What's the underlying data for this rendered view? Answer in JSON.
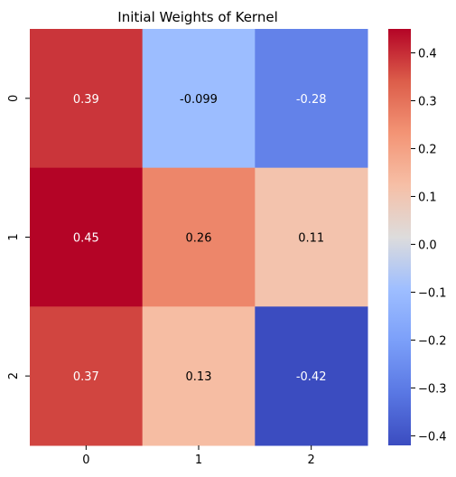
{
  "chart_data": {
    "type": "heatmap",
    "title": "Initial Weights of Kernel",
    "x_categories": [
      "0",
      "1",
      "2"
    ],
    "y_categories": [
      "0",
      "1",
      "2"
    ],
    "values": [
      [
        0.39,
        -0.099,
        -0.28
      ],
      [
        0.45,
        0.26,
        0.11
      ],
      [
        0.37,
        0.13,
        -0.42
      ]
    ],
    "annotations": [
      [
        "0.39",
        "-0.099",
        "-0.28"
      ],
      [
        "0.45",
        "0.26",
        "0.11"
      ],
      [
        "0.37",
        "0.13",
        "-0.42"
      ]
    ],
    "colormap": "coolwarm",
    "vmin": -0.42,
    "vmax": 0.45,
    "colorbar_ticks": [
      "0.4",
      "0.3",
      "0.2",
      "0.1",
      "0.0",
      "−0.1",
      "−0.2",
      "−0.3",
      "−0.4"
    ],
    "colorbar_tick_values": [
      0.4,
      0.3,
      0.2,
      0.1,
      0.0,
      -0.1,
      -0.2,
      -0.3,
      -0.4
    ],
    "xlabel": "",
    "ylabel": ""
  }
}
